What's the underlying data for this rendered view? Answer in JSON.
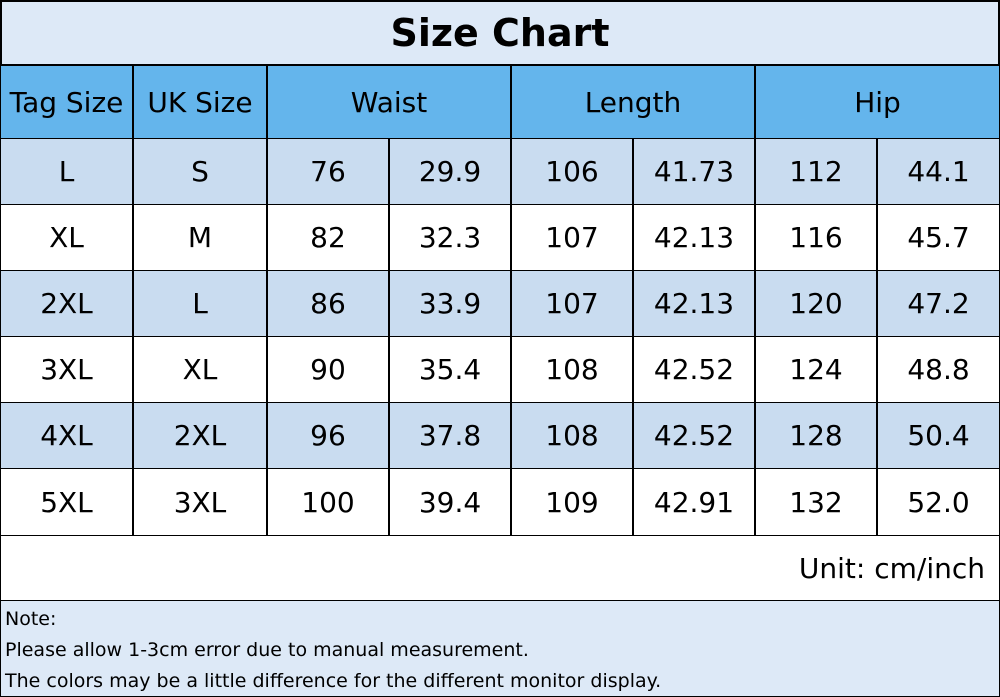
{
  "title": "Size Chart",
  "table": {
    "header": [
      "Tag Size",
      "UK Size",
      "Waist",
      "Length",
      "Hip"
    ],
    "rows": [
      [
        "L",
        "S",
        "76",
        "29.9",
        "106",
        "41.73",
        "112",
        "44.1"
      ],
      [
        "XL",
        "M",
        "82",
        "32.3",
        "107",
        "42.13",
        "116",
        "45.7"
      ],
      [
        "2XL",
        "L",
        "86",
        "33.9",
        "107",
        "42.13",
        "120",
        "47.2"
      ],
      [
        "3XL",
        "XL",
        "90",
        "35.4",
        "108",
        "42.52",
        "124",
        "48.8"
      ],
      [
        "4XL",
        "2XL",
        "96",
        "37.8",
        "108",
        "42.52",
        "128",
        "50.4"
      ],
      [
        "5XL",
        "3XL",
        "100",
        "39.4",
        "109",
        "42.91",
        "132",
        "52.0"
      ]
    ]
  },
  "unit": "Unit: cm/inch",
  "note": {
    "heading": "Note:",
    "lines": [
      "Please allow 1-3cm error due to manual measurement.",
      "The colors may be a little difference for the different monitor display."
    ]
  }
}
